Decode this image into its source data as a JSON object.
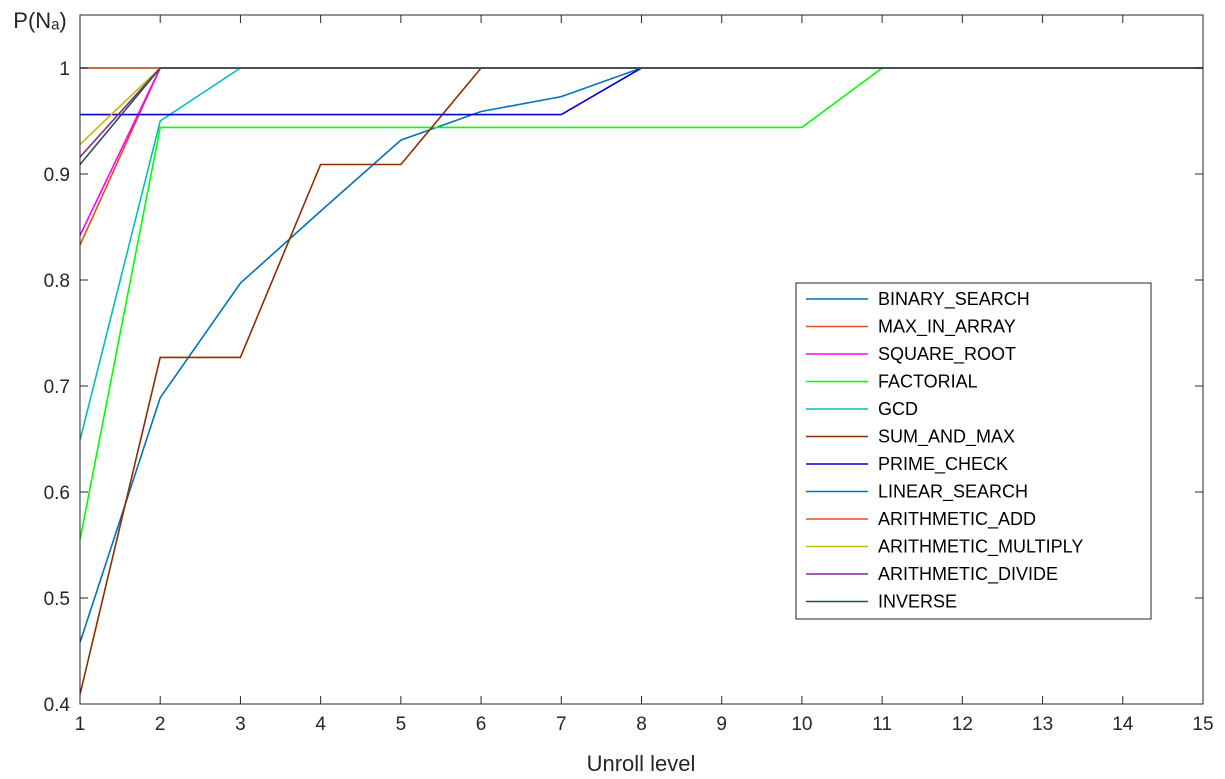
{
  "chart_data": {
    "type": "line",
    "title": "",
    "xlabel": "Unroll level",
    "ylabel": "P(Nₐ)",
    "xlim": [
      1,
      15
    ],
    "ylim": [
      0.4,
      1.05
    ],
    "x_ticks": [
      1,
      2,
      3,
      4,
      5,
      6,
      7,
      8,
      9,
      10,
      11,
      12,
      13,
      14,
      15
    ],
    "y_ticks": [
      0.4,
      0.5,
      0.6,
      0.7,
      0.8,
      0.9,
      1
    ],
    "grid": false,
    "legend_position": "right",
    "x": [
      1,
      2,
      3,
      4,
      5,
      6,
      7,
      8,
      9,
      10,
      11,
      12,
      13,
      14,
      15
    ],
    "series": [
      {
        "name": "BINARY_SEARCH",
        "color": "#0072BD",
        "values": [
          0.458,
          0.689,
          0.797,
          0.865,
          0.932,
          0.959,
          0.973,
          1,
          1,
          1,
          1,
          1,
          1,
          1,
          1
        ]
      },
      {
        "name": "MAX_IN_ARRAY",
        "color": "#D95319",
        "values": [
          0.833,
          1,
          1,
          1,
          1,
          1,
          1,
          1,
          1,
          1,
          1,
          1,
          1,
          1,
          1
        ]
      },
      {
        "name": "SQUARE_ROOT",
        "color": "#FF00FF",
        "values": [
          0.842,
          1,
          1,
          1,
          1,
          1,
          1,
          1,
          1,
          1,
          1,
          1,
          1,
          1,
          1
        ]
      },
      {
        "name": "FACTORIAL",
        "color": "#00FF00",
        "values": [
          0.555,
          0.944,
          0.944,
          0.944,
          0.944,
          0.944,
          0.944,
          0.944,
          0.944,
          0.944,
          1,
          1,
          1,
          1,
          1
        ]
      },
      {
        "name": "GCD",
        "color": "#00BFBF",
        "values": [
          0.649,
          0.95,
          1,
          1,
          1,
          1,
          1,
          1,
          1,
          1,
          1,
          1,
          1,
          1,
          1
        ]
      },
      {
        "name": "SUM_AND_MAX",
        "color": "#8B2E00",
        "values": [
          0.409,
          0.727,
          0.727,
          0.909,
          0.909,
          1,
          1,
          1,
          1,
          1,
          1,
          1,
          1,
          1,
          1
        ]
      },
      {
        "name": "PRIME_CHECK",
        "color": "#0000CC",
        "values": [
          0.956,
          0.956,
          0.956,
          0.956,
          0.956,
          0.956,
          0.956,
          1,
          1,
          1,
          1,
          1,
          1,
          1,
          1
        ]
      },
      {
        "name": "LINEAR_SEARCH",
        "color": "#0072BD",
        "values": [
          1,
          1,
          1,
          1,
          1,
          1,
          1,
          1,
          1,
          1,
          1,
          1,
          1,
          1,
          1
        ]
      },
      {
        "name": "ARITHMETIC_ADD",
        "color": "#D95319",
        "values": [
          1,
          1,
          1,
          1,
          1,
          1,
          1,
          1,
          1,
          1,
          1,
          1,
          1,
          1,
          1
        ]
      },
      {
        "name": "ARITHMETIC_MULTIPLY",
        "color": "#BFBF00",
        "values": [
          0.928,
          1,
          1,
          1,
          1,
          1,
          1,
          1,
          1,
          1,
          1,
          1,
          1,
          1,
          1
        ]
      },
      {
        "name": "ARITHMETIC_DIVIDE",
        "color": "#7E2F8E",
        "values": [
          0.916,
          1,
          1,
          1,
          1,
          1,
          1,
          1,
          1,
          1,
          1,
          1,
          1,
          1,
          1
        ]
      },
      {
        "name": "INVERSE",
        "color": "#2F4F4F",
        "values": [
          0.909,
          1,
          1,
          1,
          1,
          1,
          1,
          1,
          1,
          1,
          1,
          1,
          1,
          1,
          1
        ]
      }
    ]
  }
}
